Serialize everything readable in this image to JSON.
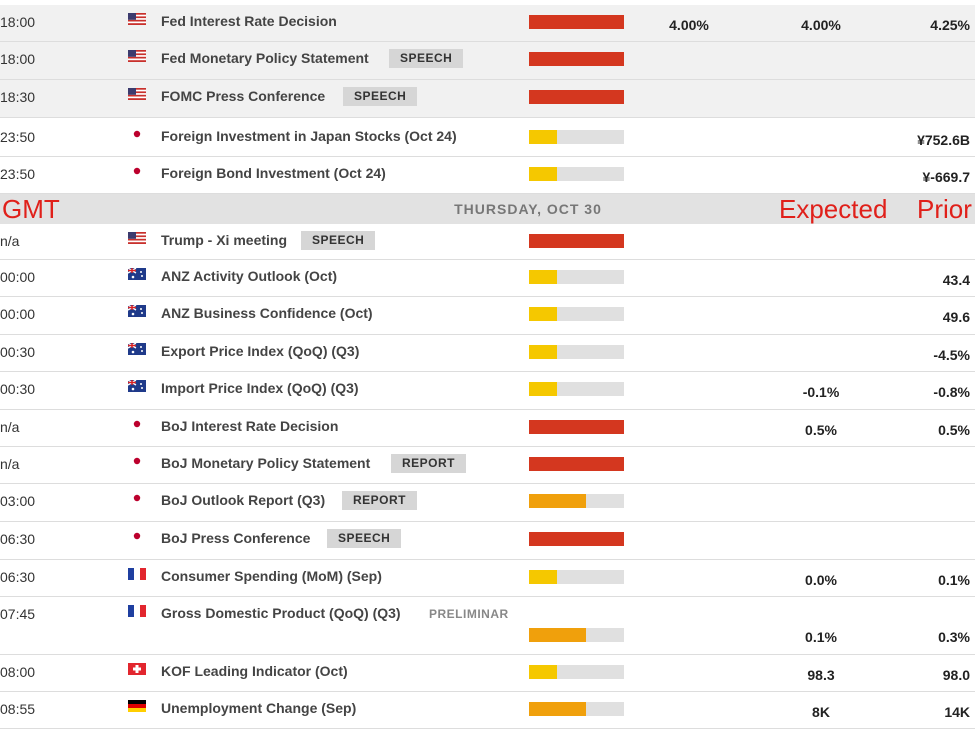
{
  "rows_wed": [
    {
      "time": "18:00",
      "event": "Fed Interest Rate Decision",
      "actual": "4.00%",
      "forecast": "4.00%",
      "previous": "4.25%"
    },
    {
      "time": "18:00",
      "event": "Fed Monetary Policy Statement",
      "tag": "SPEECH"
    },
    {
      "time": "18:30",
      "event": "FOMC Press Conference",
      "tag": "SPEECH"
    },
    {
      "time": "23:50",
      "event": "Foreign Investment in Japan Stocks (Oct 24)",
      "previous": "¥752.6B"
    },
    {
      "time": "23:50",
      "event": "Foreign Bond Investment (Oct 24)",
      "previous": "¥-669.7"
    }
  ],
  "day_header": {
    "timezone": "GMT",
    "date": "THURSDAY, OCT 30",
    "expected": "Expected",
    "prior": "Prior"
  },
  "rows_thu": [
    {
      "time": "n/a",
      "event": "Trump - Xi meeting",
      "tag": "SPEECH"
    },
    {
      "time": "00:00",
      "event": "ANZ Activity Outlook (Oct)",
      "previous": "43.4"
    },
    {
      "time": "00:00",
      "event": "ANZ Business Confidence (Oct)",
      "previous": "49.6"
    },
    {
      "time": "00:30",
      "event": "Export Price Index (QoQ) (Q3)",
      "previous": "-4.5%"
    },
    {
      "time": "00:30",
      "event": "Import Price Index (QoQ) (Q3)",
      "forecast": "-0.1%",
      "previous": "-0.8%"
    },
    {
      "time": "n/a",
      "event": "BoJ Interest Rate Decision",
      "forecast": "0.5%",
      "previous": "0.5%"
    },
    {
      "time": "n/a",
      "event": "BoJ Monetary Policy Statement",
      "tag": "REPORT"
    },
    {
      "time": "03:00",
      "event": "BoJ Outlook Report (Q3)",
      "tag": "REPORT"
    },
    {
      "time": "06:30",
      "event": "BoJ Press Conference",
      "tag": "SPEECH"
    },
    {
      "time": "06:30",
      "event": "Consumer Spending (MoM) (Sep)",
      "forecast": "0.0%",
      "previous": "0.1%"
    },
    {
      "time": "07:45",
      "event": "Gross Domestic Product (QoQ) (Q3)",
      "note": "PRELIMINAR",
      "forecast": "0.1%",
      "previous": "0.3%"
    },
    {
      "time": "08:00",
      "event": "KOF Leading Indicator (Oct)",
      "forecast": "98.3",
      "previous": "98.0"
    },
    {
      "time": "08:55",
      "event": "Unemployment Change (Sep)",
      "forecast": "8K",
      "previous": "14K"
    }
  ]
}
